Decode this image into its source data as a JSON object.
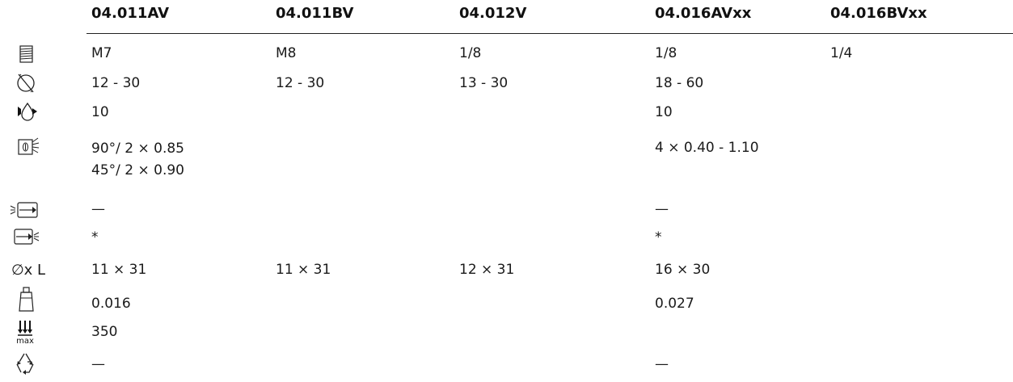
{
  "columns": [
    "04.011AV",
    "04.011BV",
    "04.012V",
    "04.016AVxx",
    "04.016BVxx"
  ],
  "rows": [
    {
      "icon": "thread-icon",
      "cells": [
        "M7",
        "M8",
        "1/8",
        "1/8",
        "1/4"
      ]
    },
    {
      "icon": "diameter-range-icon",
      "cells": [
        "12 - 30",
        "12 - 30",
        "13 - 30",
        "18 - 60",
        ""
      ]
    },
    {
      "icon": "pressure-flow-icon",
      "cells": [
        "10",
        "",
        "",
        "10",
        ""
      ]
    },
    {
      "icon": "spray-nozzle-icon",
      "cells": [
        "90°/ 2 × 0.85\n45°/ 2 × 0.90",
        "",
        "",
        "4 × 0.40 - 1.10",
        ""
      ]
    },
    {
      "icon": "inlet-connection-icon",
      "cells": [
        "—",
        "",
        "",
        "—",
        ""
      ]
    },
    {
      "icon": "outlet-connection-icon",
      "cells": [
        "*",
        "",
        "",
        "*",
        ""
      ]
    },
    {
      "icon": "diameter-length-icon",
      "icon_text": "∅x L",
      "cells": [
        "11 × 31",
        "11 × 31",
        "12 × 31",
        "16 × 30",
        ""
      ]
    },
    {
      "icon": "weight-icon",
      "cells": [
        "0.016",
        "",
        "",
        "0.027",
        ""
      ]
    },
    {
      "icon": "max-load-icon",
      "icon_text": "max",
      "cells": [
        "350",
        "",
        "",
        "",
        ""
      ]
    },
    {
      "icon": "recycle-icon",
      "cells": [
        "—",
        "",
        "",
        "—",
        ""
      ]
    }
  ]
}
